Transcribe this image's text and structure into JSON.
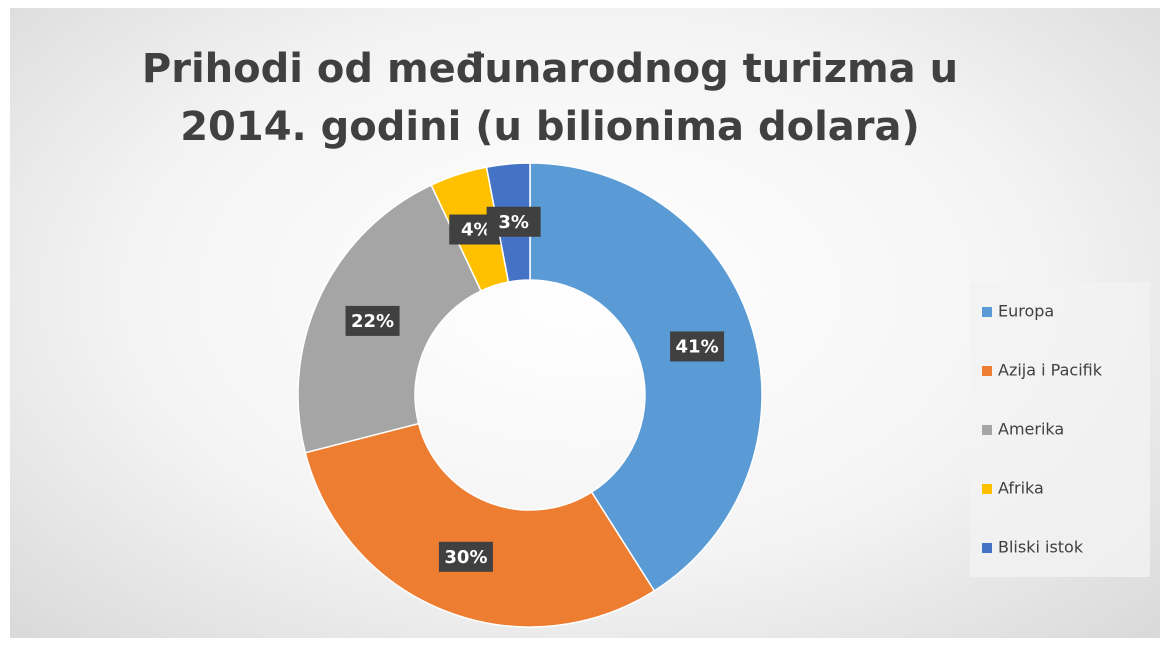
{
  "chart_data": {
    "type": "donut",
    "title": "Prihodi od međunarodnog turizma u 2014. godini (u bilionima dolara)",
    "categories": [
      "Europa",
      "Azija i Pacifik",
      "Amerika",
      "Afrika",
      "Bliski istok"
    ],
    "values": [
      41,
      30,
      22,
      4,
      3
    ],
    "value_labels": [
      "41%",
      "30%",
      "22%",
      "4%",
      "3%"
    ],
    "colors": [
      "#5b9bd5",
      "#ed7d31",
      "#a5a5a5",
      "#ffc000",
      "#4472c4"
    ],
    "legend": "right"
  }
}
